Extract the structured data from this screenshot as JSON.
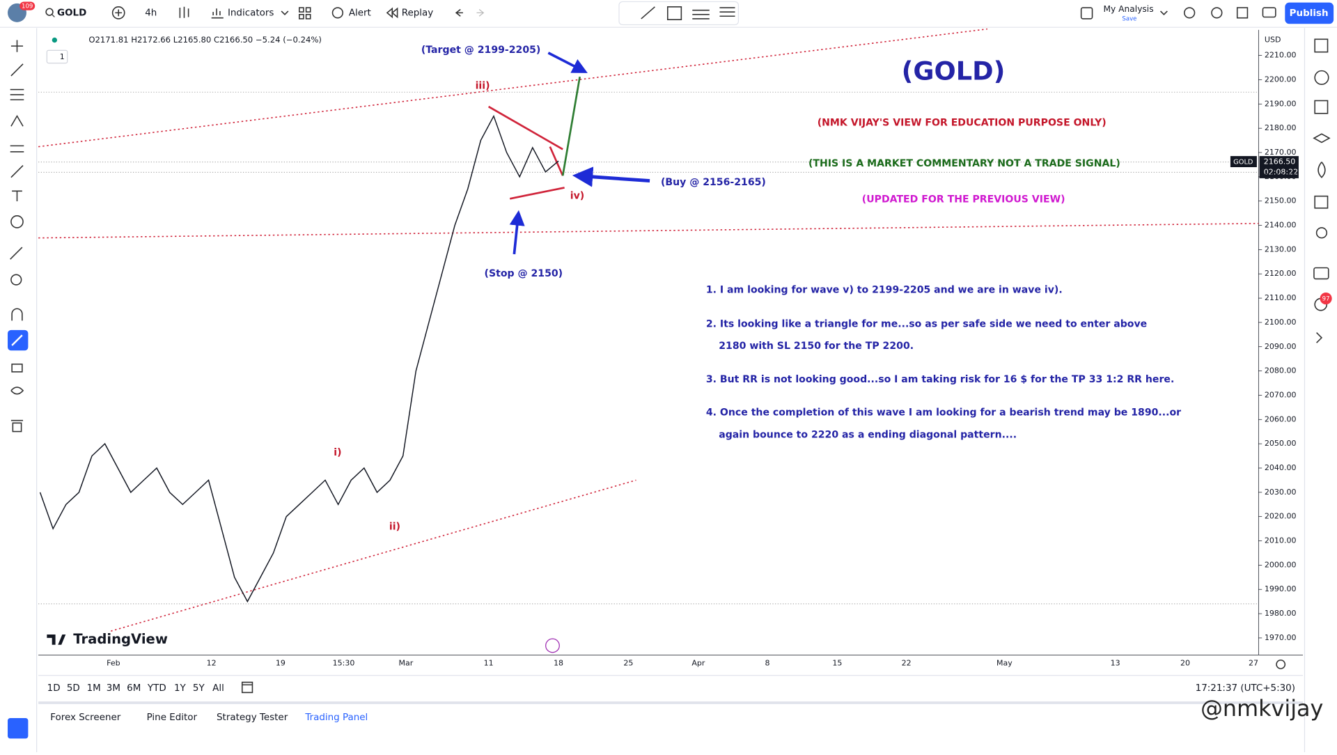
{
  "toolbar": {
    "notifications": "109",
    "symbol": "GOLD",
    "interval": "4h",
    "indicators": "Indicators",
    "alert": "Alert",
    "replay": "Replay",
    "layout_name": "My Analysis",
    "layout_status": "Save",
    "publish": "Publish"
  },
  "legend": {
    "ohlc": "O2171.81 H2172.66 L2165.80 C2166.50 −5.24 (−0.24%)",
    "count": "1"
  },
  "chart": {
    "currency": "USD",
    "last_price_tag": "GOLD",
    "last_price": "2166.50",
    "countdown": "02:08:22",
    "price_ticks": [
      {
        "value": 2210,
        "label": "2210.00"
      },
      {
        "value": 2200,
        "label": "2200.00"
      },
      {
        "value": 2190,
        "label": "2190.00"
      },
      {
        "value": 2180,
        "label": "2180.00"
      },
      {
        "value": 2170,
        "label": "2170.00"
      },
      {
        "value": 2160,
        "label": "2160.00"
      },
      {
        "value": 2150,
        "label": "2150.00"
      },
      {
        "value": 2140,
        "label": "2140.00"
      },
      {
        "value": 2130,
        "label": "2130.00"
      },
      {
        "value": 2120,
        "label": "2120.00"
      },
      {
        "value": 2110,
        "label": "2110.00"
      },
      {
        "value": 2100,
        "label": "2100.00"
      },
      {
        "value": 2090,
        "label": "2090.00"
      },
      {
        "value": 2080,
        "label": "2080.00"
      },
      {
        "value": 2070,
        "label": "2070.00"
      },
      {
        "value": 2060,
        "label": "2060.00"
      },
      {
        "value": 2050,
        "label": "2050.00"
      },
      {
        "value": 2040,
        "label": "2040.00"
      },
      {
        "value": 2030,
        "label": "2030.00"
      },
      {
        "value": 2020,
        "label": "2020.00"
      },
      {
        "value": 2010,
        "label": "2010.00"
      },
      {
        "value": 2000,
        "label": "2000.00"
      },
      {
        "value": 1990,
        "label": "1990.00"
      },
      {
        "value": 1980,
        "label": "1980.00"
      },
      {
        "value": 1970,
        "label": "1970.00"
      }
    ],
    "time_labels": [
      "Feb",
      "12",
      "19",
      "15:30",
      "Mar",
      "11",
      "18",
      "25",
      "Apr",
      "8",
      "15",
      "22",
      "May",
      "13",
      "20",
      "27"
    ],
    "closes": [
      2030,
      2015,
      2025,
      2030,
      2045,
      2050,
      2040,
      2030,
      2035,
      2040,
      2030,
      2025,
      2030,
      2035,
      2015,
      1995,
      1985,
      1995,
      2005,
      2020,
      2025,
      2030,
      2035,
      2025,
      2035,
      2040,
      2030,
      2035,
      2045,
      2080,
      2100,
      2120,
      2140,
      2155,
      2175,
      2185,
      2170,
      2160,
      2172,
      2162,
      2166.5
    ]
  },
  "annotations": {
    "target": "(Target @ 2199-2205)",
    "wave_iii": "iii)",
    "buy": "(Buy @ 2156-2165)",
    "wave_iv": "iv)",
    "stop": "(Stop @ 2150)",
    "wave_i": "i)",
    "wave_ii": "ii)",
    "title": "(GOLD)",
    "disclaimer_1": "(NMK VIJAY'S VIEW FOR EDUCATION PURPOSE ONLY)",
    "disclaimer_2": "(THIS IS A MARKET COMMENTARY NOT A TRADE SIGNAL)",
    "update": "(UPDATED FOR THE PREVIOUS VIEW)"
  },
  "notes": [
    "1.  I am looking for wave v) to 2199-2205 and we are in wave iv).",
    "2.  Its looking like a triangle for me...so as per safe side we need to enter above",
    "2180 with SL 2150 for the TP 2200.",
    "3.  But RR is not looking good...so I am taking risk for 16 $ for the TP 33 1:2 RR here.",
    "4.  Once the completion of this wave I am looking for a bearish trend may be 1890...or",
    "again bounce to 2220 as a ending diagonal pattern...."
  ],
  "watermark": "TradingView",
  "range_buttons": [
    "1D",
    "5D",
    "1M",
    "3M",
    "6M",
    "YTD",
    "1Y",
    "5Y",
    "All"
  ],
  "clock": "17:21:37 (UTC+5:30)",
  "bottom_tabs": [
    "Forex Screener",
    "Pine Editor",
    "Strategy Tester",
    "Trading Panel"
  ],
  "side_badge": "97",
  "credit": "@nmkvijay"
}
